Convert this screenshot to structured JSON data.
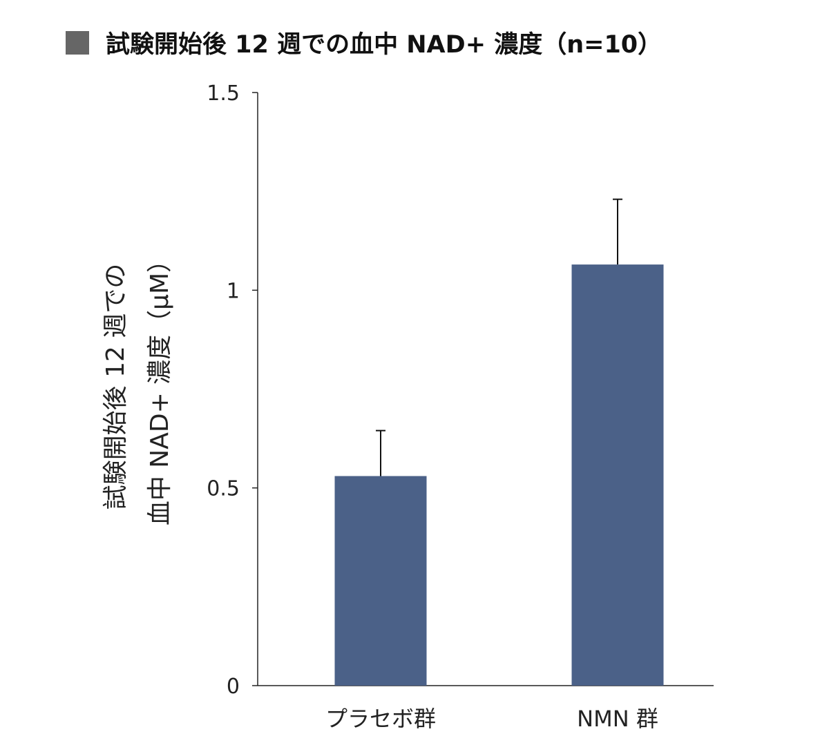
{
  "chart_data": {
    "type": "bar",
    "title": "試験開始後 12 週での血中 NAD+ 濃度（n=10）",
    "ylabel_lines": [
      "試験開始後 12 週での",
      "血中 NAD+ 濃度（μM）"
    ],
    "xlabel": "",
    "categories": [
      "プラセボ群",
      "NMN 群"
    ],
    "values": [
      0.53,
      1.065
    ],
    "error": [
      0.115,
      0.165
    ],
    "ylim": [
      0,
      1.5
    ],
    "yticks": [
      0,
      0.5,
      1,
      1.5
    ],
    "ytick_labels": [
      "0",
      "0.5",
      "1",
      "1.5"
    ],
    "grid": false,
    "bar_color": "#4b6188",
    "title_marker_color": "#666666"
  }
}
